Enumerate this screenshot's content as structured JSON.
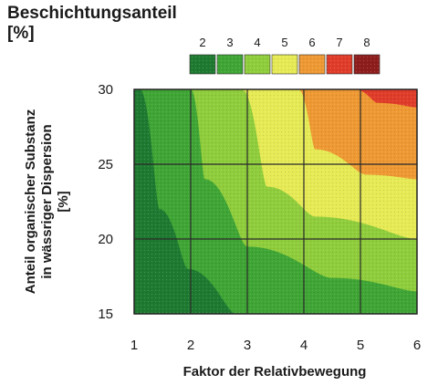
{
  "title_lines": [
    "Beschichtungsanteil",
    "[%]"
  ],
  "legend": {
    "levels": [
      "2",
      "3",
      "4",
      "5",
      "6",
      "7",
      "8"
    ],
    "colors": [
      "#1e7a30",
      "#3fa535",
      "#8fcd3c",
      "#e6ea55",
      "#ee9933",
      "#e03c2a",
      "#8e1d1d"
    ]
  },
  "chart_data": {
    "type": "heatmap",
    "subtype": "filled-contour",
    "title": "Beschichtungsanteil [%]",
    "xlabel": "Faktor der Relativbewegung",
    "ylabel_lines": [
      "Anteil organischer Substanz",
      "in wässriger Dispersion",
      "[%]"
    ],
    "xlim": [
      1,
      6
    ],
    "ylim": [
      15,
      30
    ],
    "xticks": [
      "1",
      "2",
      "3",
      "4",
      "5",
      "6"
    ],
    "yticks": [
      "15",
      "20",
      "25",
      "30"
    ],
    "grid": true,
    "contour_levels": [
      2,
      3,
      4,
      5,
      6,
      7,
      8
    ],
    "regions": [
      {
        "level": 3,
        "boundary": [
          [
            1.1,
            30
          ],
          [
            1.45,
            22
          ],
          [
            1.95,
            18
          ],
          [
            2.8,
            15
          ]
        ]
      },
      {
        "level": 4,
        "boundary": [
          [
            2.0,
            30
          ],
          [
            2.25,
            24
          ],
          [
            3.0,
            19.5
          ],
          [
            4.5,
            17.4
          ],
          [
            6.0,
            16.5
          ]
        ]
      },
      {
        "level": 5,
        "boundary": [
          [
            2.9,
            30
          ],
          [
            3.35,
            23.5
          ],
          [
            4.2,
            21.5
          ],
          [
            6.0,
            20
          ]
        ]
      },
      {
        "level": 6,
        "boundary": [
          [
            3.9,
            30
          ],
          [
            4.2,
            26
          ],
          [
            5.1,
            24.3
          ],
          [
            6.0,
            24
          ]
        ]
      },
      {
        "level": 7,
        "boundary": [
          [
            4.9,
            30
          ],
          [
            5.3,
            29.1
          ],
          [
            6.0,
            28.8
          ]
        ]
      }
    ]
  }
}
